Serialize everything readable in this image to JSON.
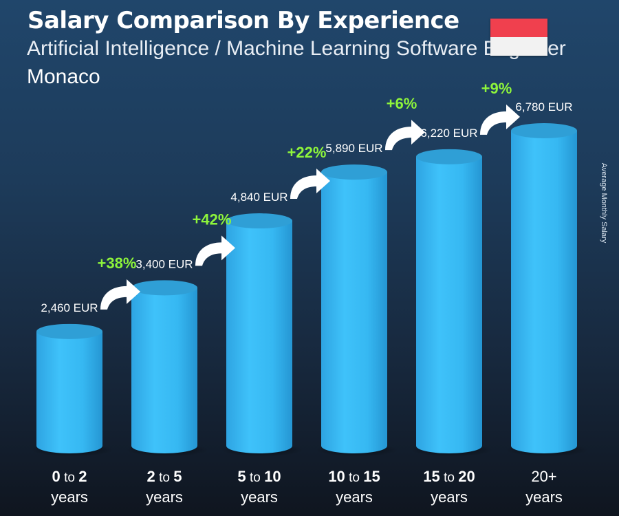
{
  "header": {
    "title": "Salary Comparison By Experience",
    "subtitle": "Artificial Intelligence / Machine Learning Software Engineer",
    "location": "Monaco"
  },
  "flag": {
    "top_color": "#f0404e",
    "bottom_color": "#f2f2f2"
  },
  "side_label": "Average Monthly Salary",
  "colors": {
    "bar_main": "#33b7f3",
    "bar_top": "#2f9fd6",
    "increase_text": "#8ef53b",
    "background_top": "#20466b",
    "background_bottom": "#0f151f"
  },
  "chart_data": {
    "type": "bar",
    "categories": [
      {
        "bold_from": "0",
        "to_word": "to",
        "bold_to": "2",
        "unit": "years"
      },
      {
        "bold_from": "2",
        "to_word": "to",
        "bold_to": "5",
        "unit": "years"
      },
      {
        "bold_from": "5",
        "to_word": "to",
        "bold_to": "10",
        "unit": "years"
      },
      {
        "bold_from": "10",
        "to_word": "to",
        "bold_to": "15",
        "unit": "years"
      },
      {
        "bold_from": "15",
        "to_word": "to",
        "bold_to": "20",
        "unit": "years"
      },
      {
        "bold_from": "",
        "to_word": "20+",
        "bold_to": "",
        "unit": "years"
      }
    ],
    "values": [
      2460,
      3400,
      4840,
      5890,
      6220,
      6780
    ],
    "value_labels": [
      "2,460 EUR",
      "3,400 EUR",
      "4,840 EUR",
      "5,890 EUR",
      "6,220 EUR",
      "6,780 EUR"
    ],
    "increases": [
      "+38%",
      "+42%",
      "+22%",
      "+6%",
      "+9%"
    ],
    "ylabel": "Average Monthly Salary",
    "ylim": [
      0,
      6780
    ],
    "grid": false,
    "legend": "none"
  }
}
